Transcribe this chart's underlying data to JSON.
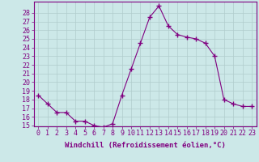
{
  "x": [
    0,
    1,
    2,
    3,
    4,
    5,
    6,
    7,
    8,
    9,
    10,
    11,
    12,
    13,
    14,
    15,
    16,
    17,
    18,
    19,
    20,
    21,
    22,
    23
  ],
  "y": [
    18.5,
    17.5,
    16.5,
    16.5,
    15.5,
    15.5,
    15.0,
    14.8,
    15.2,
    18.5,
    21.5,
    24.5,
    27.5,
    28.8,
    26.5,
    25.5,
    25.2,
    25.0,
    24.5,
    23.0,
    18.0,
    17.5,
    17.2,
    17.2
  ],
  "line_color": "#800080",
  "marker": "+",
  "marker_size": 4,
  "marker_color": "#800080",
  "bg_color": "#cce8e8",
  "grid_color": "#b0cccc",
  "xlabel": "Windchill (Refroidissement éolien,°C)",
  "ylim": [
    15,
    29
  ],
  "xlim": [
    -0.5,
    23.5
  ],
  "yticks": [
    15,
    16,
    17,
    18,
    19,
    20,
    21,
    22,
    23,
    24,
    25,
    26,
    27,
    28
  ],
  "xticks": [
    0,
    1,
    2,
    3,
    4,
    5,
    6,
    7,
    8,
    9,
    10,
    11,
    12,
    13,
    14,
    15,
    16,
    17,
    18,
    19,
    20,
    21,
    22,
    23
  ],
  "tick_color": "#800080",
  "label_color": "#800080",
  "spine_color": "#800080",
  "font_size": 6,
  "xlabel_fontsize": 6.5
}
